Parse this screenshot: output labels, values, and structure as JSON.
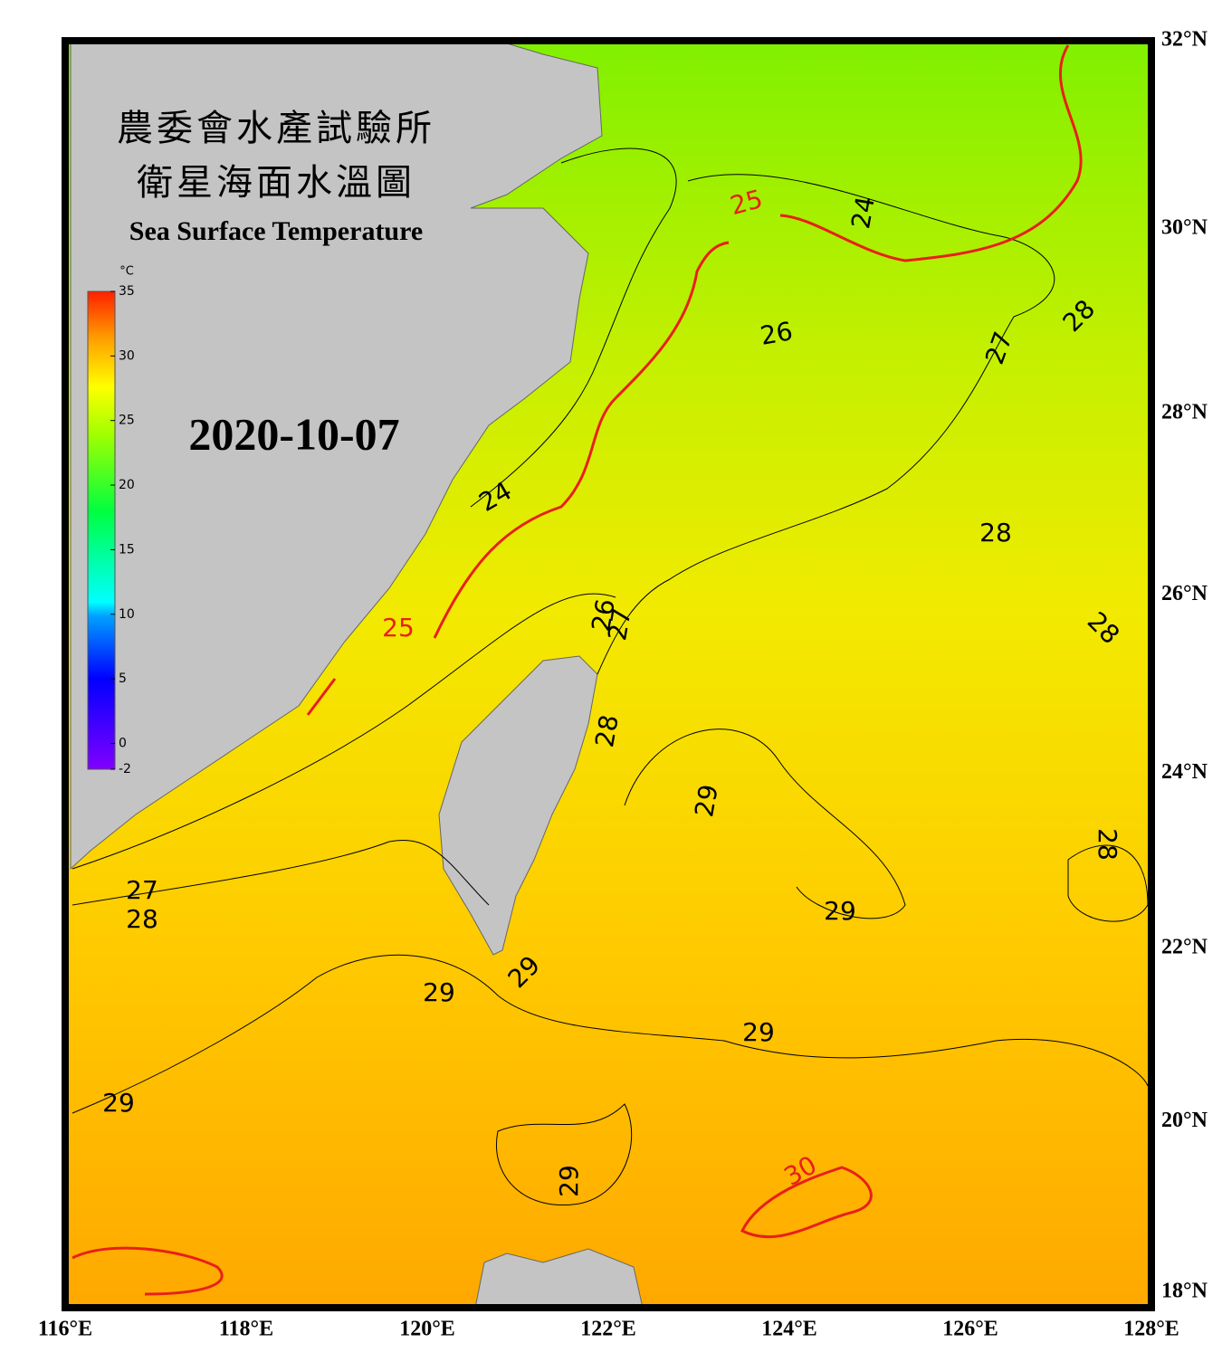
{
  "header": {
    "title_zh_1": "農委會水產試驗所",
    "title_zh_2": "衛星海面水溫圖",
    "title_en": "Sea Surface Temperature",
    "date": "2020-10-07"
  },
  "colorbar": {
    "unit": "°C",
    "range": [
      -2,
      35
    ],
    "ticks": [
      35,
      30,
      25,
      20,
      15,
      10,
      5,
      0,
      -2
    ]
  },
  "map": {
    "lonlim": [
      116,
      128
    ],
    "latlim": [
      18,
      32
    ],
    "lon_ticks": [
      {
        "value": 116,
        "label": "116°E"
      },
      {
        "value": 118,
        "label": "118°E"
      },
      {
        "value": 120,
        "label": "120°E"
      },
      {
        "value": 122,
        "label": "122°E"
      },
      {
        "value": 124,
        "label": "124°E"
      },
      {
        "value": 126,
        "label": "126°E"
      },
      {
        "value": 128,
        "label": "128°E"
      }
    ],
    "lat_ticks": [
      {
        "value": 32,
        "label": "32°N"
      },
      {
        "value": 30,
        "label": "30°N"
      },
      {
        "value": 28,
        "label": "28°N"
      },
      {
        "value": 26,
        "label": "26°N"
      },
      {
        "value": 24,
        "label": "24°N"
      },
      {
        "value": 22,
        "label": "22°N"
      },
      {
        "value": 20,
        "label": "20°N"
      },
      {
        "value": 18,
        "label": "18°N"
      }
    ],
    "contour_labels": [
      24,
      25,
      26,
      27,
      28,
      24,
      28,
      28,
      26,
      27,
      28,
      29,
      28,
      29,
      27,
      28,
      29,
      29,
      29,
      29,
      29,
      30,
      25
    ]
  }
}
